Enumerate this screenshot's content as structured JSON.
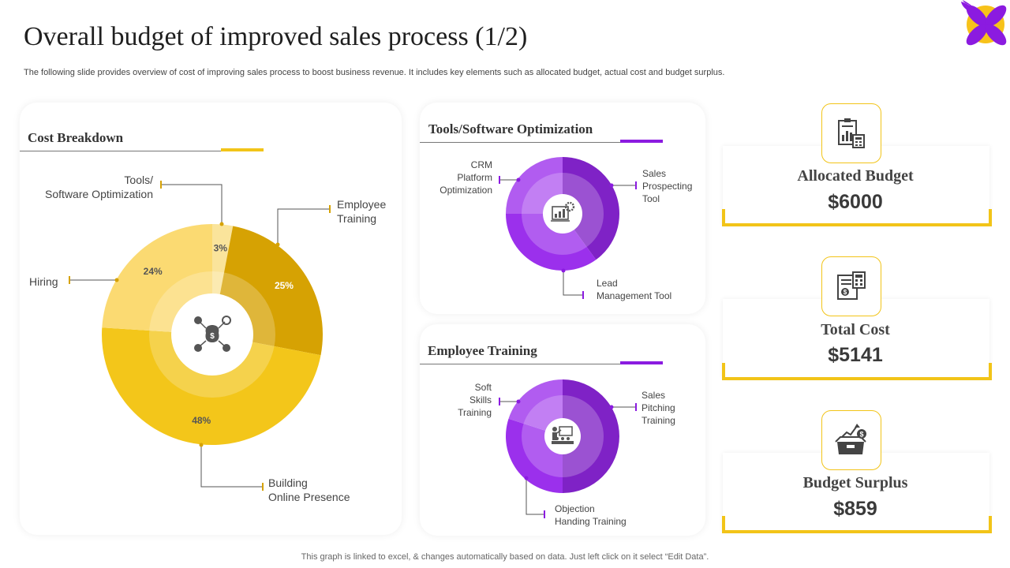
{
  "page": {
    "title": "Overall budget of improved sales process (1/2)",
    "subtitle": "The following slide provides overview of cost of improving sales process to boost business revenue. It includes key elements such as allocated budget, actual cost and budget surplus.",
    "footer": "This graph is linked to excel, & changes automatically based on data. Just left click on it select “Edit Data”."
  },
  "colors": {
    "yellow_accent": "#f2c418",
    "purple_accent": "#8b1be0"
  },
  "icons": {
    "logo": "flower-logo-icon",
    "cost_center": "money-bag-network-icon",
    "tools_center": "analytics-gear-icon",
    "training_center": "presentation-trainer-icon",
    "allocated": "clipboard-chart-calculator-icon",
    "total_cost": "invoice-calculator-icon",
    "surplus": "wallet-growth-icon"
  },
  "chart_data": [
    {
      "type": "pie",
      "title": "Cost Breakdown",
      "categories": [
        "Tools/ Software Optimization",
        "Employee Training",
        "Building Online Presence",
        "Hiring"
      ],
      "values": [
        3,
        25,
        48,
        24
      ],
      "value_labels": [
        "3%",
        "25%",
        "48%",
        "24%"
      ],
      "colors": [
        "#fae49b",
        "#d6a203",
        "#f3c61a",
        "#fbda72"
      ],
      "labels": {
        "tools_line1": "Tools/",
        "tools_line2": "Software Optimization",
        "training_line1": "Employee",
        "training_line2": "Training",
        "online_line1": "Building",
        "online_line2": "Online Presence",
        "hiring": "Hiring"
      }
    },
    {
      "type": "pie",
      "title": "Tools/Software Optimization",
      "categories": [
        "Sales Prospecting Tool",
        "Lead Management Tool",
        "CRM Platform Optimization"
      ],
      "values": [
        40,
        35,
        25
      ],
      "colors": [
        "#7f22c6",
        "#9b30ec",
        "#b15cf0"
      ],
      "labels": {
        "crm_1": "CRM",
        "crm_2": "Platform",
        "crm_3": "Optimization",
        "sales_1": "Sales",
        "sales_2": "Prospecting",
        "sales_3": "Tool",
        "lead_1": "Lead",
        "lead_2": "Management Tool"
      }
    },
    {
      "type": "pie",
      "title": "Employee Training",
      "categories": [
        "Sales Pitching Training",
        "Objection Handing Training",
        "Soft Skills Training"
      ],
      "values": [
        50,
        30,
        20
      ],
      "colors": [
        "#7f22c6",
        "#9b30ec",
        "#b15cf0"
      ],
      "labels": {
        "soft_1": "Soft",
        "soft_2": "Skills",
        "soft_3": "Training",
        "pitch_1": "Sales",
        "pitch_2": "Pitching",
        "pitch_3": "Training",
        "obj_1": "Objection",
        "obj_2": "Handing Training"
      }
    }
  ],
  "kpis": [
    {
      "label": "Allocated Budget",
      "value": "$6000"
    },
    {
      "label": "Total Cost",
      "value": "$5141"
    },
    {
      "label": "Budget Surplus",
      "value": "$859"
    }
  ]
}
